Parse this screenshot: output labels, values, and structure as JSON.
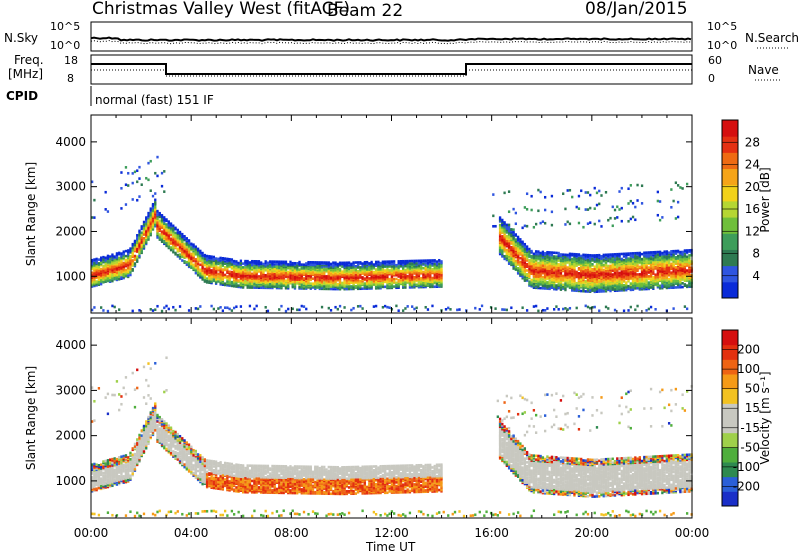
{
  "header": {
    "title": "Christmas Valley West (fitACF)",
    "beam": "Beam 22",
    "date": "08/Jan/2015"
  },
  "strips": {
    "nsky_label": "N.Sky",
    "nsearch_label": "N.Search",
    "nsky_ticks": [
      "10^5",
      "10^0"
    ],
    "nsearch_ticks": [
      "10^5",
      "10^0"
    ],
    "freq_label_line1": "Freq.",
    "freq_label_line2": "[MHz]",
    "freq_ticks": [
      "18",
      "8"
    ],
    "nave_label": "Nave",
    "nave_ticks": [
      "60",
      "0"
    ],
    "cpid_label": "CPID",
    "cpid_value": "normal (fast) 151 IF"
  },
  "chart_data": [
    {
      "type": "heatmap",
      "name": "Power",
      "ylabel": "Slant Range [km]",
      "yticks": [
        1000,
        2000,
        3000,
        4000
      ],
      "xlabel": "Time UT",
      "xticks": [
        "00:00",
        "04:00",
        "08:00",
        "12:00",
        "16:00",
        "20:00",
        "00:00"
      ],
      "colorbar_label": "Power [dB]",
      "colorbar_ticks": [
        "28",
        "24",
        "20",
        "16",
        "12",
        "8",
        "4"
      ],
      "colors": [
        "#0a2bd8",
        "#2f55e0",
        "#2e7a52",
        "#3d9d5a",
        "#6fbf3a",
        "#b5d633",
        "#f2d21a",
        "#f5a418",
        "#ef6b13",
        "#e53012",
        "#d50f0f"
      ]
    },
    {
      "type": "heatmap",
      "name": "Velocity",
      "ylabel": "Slant Range [km]",
      "yticks": [
        1000,
        2000,
        3000,
        4000
      ],
      "xlabel": "Time UT",
      "xticks": [
        "00:00",
        "04:00",
        "08:00",
        "12:00",
        "16:00",
        "20:00",
        "00:00"
      ],
      "colorbar_label": "Velocity [m s⁻¹]",
      "colorbar_ticks": [
        "200",
        "100",
        "50",
        "15",
        "-15",
        "-50",
        "-100",
        "-200"
      ],
      "colors": [
        "#1a2fc8",
        "#2a5fd8",
        "#2e8a50",
        "#4fae3c",
        "#9fd04a",
        "#c8c8c0",
        "#c8c8c0",
        "#f3c221",
        "#f59a17",
        "#ee6414",
        "#e3300f",
        "#d50f0f"
      ]
    }
  ]
}
